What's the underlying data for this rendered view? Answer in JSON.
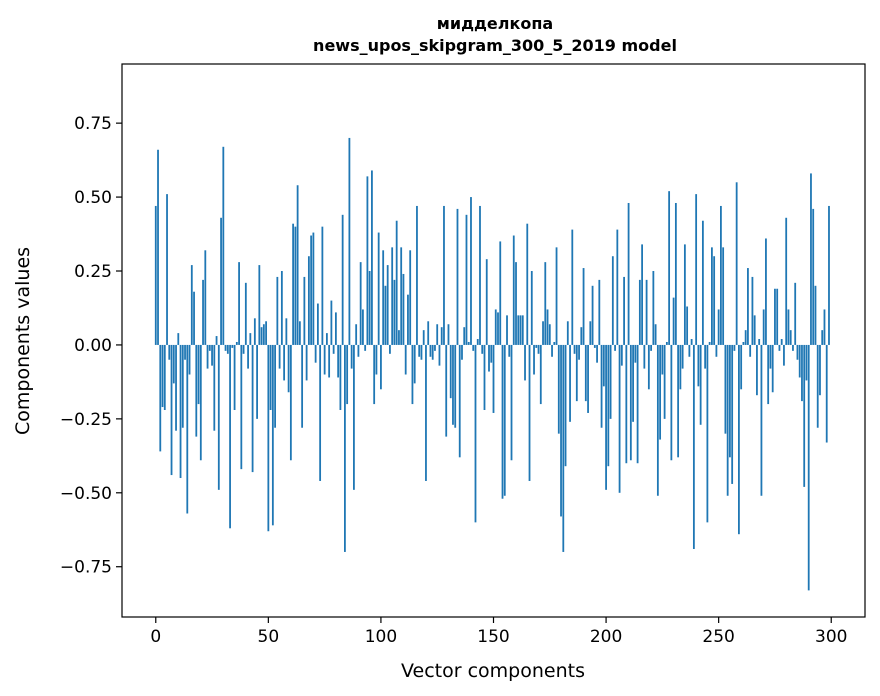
{
  "chart_data": {
    "type": "bar",
    "title_line1": "мидделкопа",
    "title_line2": "news_upos_skipgram_300_5_2019 model",
    "xlabel": "Vector components",
    "ylabel": "Components values",
    "xlim": [
      -15,
      315
    ],
    "ylim": [
      -0.92,
      0.95
    ],
    "xticks": [
      {
        "value": 0,
        "label": "0"
      },
      {
        "value": 50,
        "label": "50"
      },
      {
        "value": 100,
        "label": "100"
      },
      {
        "value": 150,
        "label": "150"
      },
      {
        "value": 200,
        "label": "200"
      },
      {
        "value": 250,
        "label": "250"
      },
      {
        "value": 300,
        "label": "300"
      }
    ],
    "yticks": [
      {
        "value": 0.75,
        "label": "0.75"
      },
      {
        "value": 0.5,
        "label": "0.50"
      },
      {
        "value": 0.25,
        "label": "0.25"
      },
      {
        "value": 0.0,
        "label": "0.00"
      },
      {
        "value": -0.25,
        "label": "−0.25"
      },
      {
        "value": -0.5,
        "label": "−0.50"
      },
      {
        "value": -0.75,
        "label": "−0.75"
      }
    ],
    "bar_color": "#1f77b4",
    "grid": false,
    "values": [
      0.47,
      0.66,
      -0.36,
      -0.21,
      -0.22,
      0.51,
      -0.05,
      -0.44,
      -0.13,
      -0.29,
      0.04,
      -0.45,
      -0.28,
      -0.05,
      -0.57,
      -0.1,
      0.27,
      0.18,
      -0.31,
      -0.2,
      -0.39,
      0.22,
      0.32,
      -0.08,
      -0.02,
      -0.07,
      -0.29,
      0.03,
      -0.49,
      0.43,
      0.67,
      -0.02,
      -0.03,
      -0.62,
      -0.01,
      -0.22,
      0.01,
      0.28,
      -0.42,
      -0.03,
      0.21,
      -0.08,
      0.04,
      -0.43,
      0.09,
      -0.25,
      0.27,
      0.06,
      0.07,
      0.08,
      -0.63,
      -0.22,
      -0.61,
      -0.28,
      0.23,
      -0.08,
      0.25,
      -0.12,
      0.09,
      -0.16,
      -0.39,
      0.41,
      0.4,
      0.54,
      0.08,
      -0.28,
      0.23,
      -0.12,
      0.3,
      0.37,
      0.38,
      -0.06,
      0.14,
      -0.46,
      0.4,
      -0.1,
      0.04,
      -0.11,
      0.15,
      -0.03,
      0.11,
      -0.11,
      -0.22,
      0.44,
      -0.7,
      -0.2,
      0.7,
      -0.08,
      -0.49,
      0.07,
      -0.04,
      0.28,
      0.12,
      -0.02,
      0.57,
      0.25,
      0.59,
      -0.2,
      -0.1,
      0.38,
      -0.15,
      0.32,
      0.2,
      0.27,
      -0.03,
      0.33,
      0.22,
      0.42,
      0.05,
      0.33,
      0.24,
      -0.1,
      0.17,
      0.32,
      -0.2,
      -0.13,
      0.47,
      -0.04,
      -0.05,
      0.05,
      -0.46,
      0.08,
      -0.04,
      -0.05,
      -0.02,
      0.07,
      -0.07,
      0.06,
      0.47,
      -0.31,
      0.07,
      -0.18,
      -0.27,
      -0.28,
      0.46,
      -0.38,
      -0.05,
      0.06,
      0.44,
      0.01,
      0.5,
      -0.02,
      -0.6,
      0.02,
      0.47,
      -0.03,
      -0.22,
      0.29,
      -0.09,
      -0.06,
      -0.23,
      0.12,
      0.11,
      0.35,
      -0.52,
      -0.51,
      0.1,
      -0.04,
      -0.39,
      0.37,
      0.28,
      0.1,
      0.1,
      0.1,
      -0.12,
      0.41,
      -0.46,
      0.25,
      -0.1,
      -0.01,
      -0.03,
      -0.2,
      0.08,
      0.28,
      0.12,
      0.07,
      -0.04,
      0.01,
      0.33,
      -0.3,
      -0.58,
      -0.7,
      -0.41,
      0.08,
      -0.26,
      0.39,
      -0.03,
      -0.19,
      -0.05,
      0.06,
      0.26,
      -0.19,
      -0.23,
      0.08,
      0.2,
      -0.01,
      -0.06,
      0.22,
      -0.28,
      -0.14,
      -0.49,
      -0.41,
      -0.25,
      0.3,
      -0.02,
      0.39,
      -0.5,
      -0.07,
      0.23,
      -0.4,
      0.48,
      -0.39,
      -0.26,
      -0.06,
      -0.4,
      0.22,
      0.34,
      -0.08,
      0.22,
      -0.15,
      -0.02,
      0.25,
      0.07,
      -0.51,
      -0.32,
      -0.1,
      -0.25,
      0.01,
      0.52,
      -0.39,
      0.16,
      0.48,
      -0.38,
      -0.15,
      -0.08,
      0.34,
      0.13,
      -0.04,
      0.02,
      -0.69,
      0.51,
      -0.14,
      -0.27,
      0.42,
      -0.08,
      -0.6,
      0.01,
      0.33,
      0.3,
      -0.04,
      0.12,
      0.47,
      0.33,
      -0.3,
      -0.51,
      -0.38,
      -0.47,
      -0.02,
      0.55,
      -0.64,
      -0.15,
      0.01,
      0.05,
      0.26,
      -0.04,
      0.23,
      0.1,
      -0.17,
      0.02,
      -0.51,
      0.12,
      0.36,
      -0.2,
      -0.08,
      -0.16,
      0.19,
      0.19,
      -0.02,
      0.02,
      -0.07,
      0.43,
      0.12,
      0.05,
      -0.02,
      0.21,
      -0.05,
      -0.11,
      -0.19,
      -0.48,
      -0.12,
      -0.83,
      0.58,
      0.46,
      0.2,
      -0.28,
      -0.17,
      0.05,
      0.12,
      -0.33,
      0.47
    ]
  }
}
